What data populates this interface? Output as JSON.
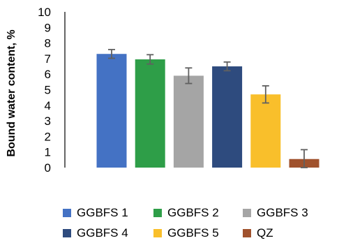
{
  "chart_data": {
    "type": "bar",
    "title": "",
    "xlabel": "",
    "ylabel": "Bound water content, %",
    "ylim": [
      0,
      10
    ],
    "yticks": [
      "0",
      "1",
      "2",
      "3",
      "4",
      "5",
      "6",
      "7",
      "8",
      "9",
      "10"
    ],
    "grid": false,
    "legend_position": "bottom",
    "categories": [
      "GGBFS 1",
      "GGBFS 2",
      "GGBFS 3",
      "GGBFS 4",
      "GGBFS 5",
      "QZ"
    ],
    "values": [
      7.3,
      6.95,
      5.9,
      6.5,
      4.7,
      0.55
    ],
    "errors": [
      0.28,
      0.3,
      0.5,
      0.28,
      0.55,
      0.6
    ],
    "colors": [
      "#4472C4",
      "#2E9E48",
      "#A5A5A5",
      "#2E4B7E",
      "#F9BF2B",
      "#A0522D"
    ],
    "error_bar_color": "#606060"
  }
}
